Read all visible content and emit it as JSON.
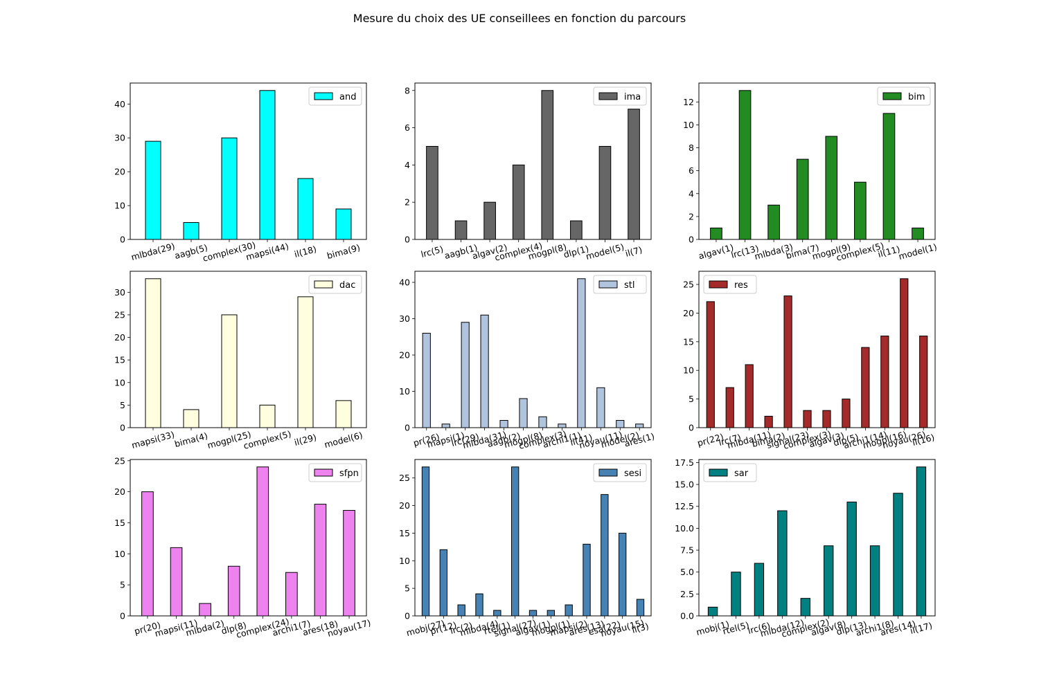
{
  "title": "Mesure du choix des UE conseillees en fonction du parcours",
  "chart_data": [
    {
      "type": "bar",
      "legend": "and",
      "color": "#00FFFF",
      "legend_loc": "upper-right",
      "categories": [
        "mlbda(29)",
        "aagb(5)",
        "complex(30)",
        "mapsi(44)",
        "il(18)",
        "bima(9)"
      ],
      "values": [
        29,
        5,
        30,
        44,
        18,
        9
      ],
      "ylim": [
        0,
        46.2
      ],
      "yticks": [
        "0",
        "10",
        "20",
        "30",
        "40"
      ]
    },
    {
      "type": "bar",
      "legend": "ima",
      "color": "#666666",
      "legend_loc": "upper-right",
      "categories": [
        "lrc(5)",
        "aagb(1)",
        "algav(2)",
        "complex(4)",
        "mogpl(8)",
        "dlp(1)",
        "model(5)",
        "il(7)"
      ],
      "values": [
        5,
        1,
        2,
        4,
        8,
        1,
        5,
        7
      ],
      "ylim": [
        0,
        8.4
      ],
      "yticks": [
        "0",
        "2",
        "4",
        "6",
        "8"
      ]
    },
    {
      "type": "bar",
      "legend": "bim",
      "color": "#228B22",
      "legend_loc": "upper-right",
      "categories": [
        "algav(1)",
        "lrc(13)",
        "mlbda(3)",
        "bima(7)",
        "mogpl(9)",
        "complex(5)",
        "il(11)",
        "model(1)"
      ],
      "values": [
        1,
        13,
        3,
        7,
        9,
        5,
        11,
        1
      ],
      "ylim": [
        0,
        13.65
      ],
      "yticks": [
        "0",
        "2",
        "4",
        "6",
        "8",
        "10",
        "12"
      ]
    },
    {
      "type": "bar",
      "legend": "dac",
      "color": "#FFFFE0",
      "legend_loc": "upper-right",
      "categories": [
        "mapsi(33)",
        "bima(4)",
        "mogpl(25)",
        "complex(5)",
        "il(29)",
        "model(6)"
      ],
      "values": [
        33,
        4,
        25,
        5,
        29,
        6
      ],
      "ylim": [
        0,
        34.65
      ],
      "yticks": [
        "0",
        "5",
        "10",
        "15",
        "20",
        "25",
        "30"
      ]
    },
    {
      "type": "bar",
      "legend": "stl",
      "color": "#B0C4DE",
      "legend_loc": "upper-right",
      "categories": [
        "pr(26)",
        "mapsi(1)",
        "lrc(29)",
        "mlbda(31)",
        "aagb(2)",
        "mogpl(8)",
        "complex(3)",
        "archi1(1)",
        "il(41)",
        "noyau(11)",
        "model(2)",
        "ares(1)"
      ],
      "values": [
        26,
        1,
        29,
        31,
        2,
        8,
        3,
        1,
        41,
        11,
        2,
        1
      ],
      "ylim": [
        0,
        43.05
      ],
      "yticks": [
        "0",
        "10",
        "20",
        "30",
        "40"
      ]
    },
    {
      "type": "bar",
      "legend": "res",
      "color": "#A52A2A",
      "legend_loc": "upper-left",
      "categories": [
        "pr(22)",
        "lrc(7)",
        "mlbda(11)",
        "bima(2)",
        "signal(23)",
        "complex(3)",
        "algav(3)",
        "dlp(5)",
        "archi1(14)",
        "mogpl(16)",
        "noyau(26)",
        "il(16)"
      ],
      "values": [
        22,
        7,
        11,
        2,
        23,
        3,
        3,
        5,
        14,
        16,
        26,
        16
      ],
      "ylim": [
        0,
        27.3
      ],
      "yticks": [
        "0",
        "5",
        "10",
        "15",
        "20",
        "25"
      ]
    },
    {
      "type": "bar",
      "legend": "sfpn",
      "color": "#EE82EE",
      "legend_loc": "upper-right",
      "categories": [
        "pr(20)",
        "mapsi(11)",
        "mlbda(2)",
        "dlp(8)",
        "complex(24)",
        "archi1(7)",
        "ares(18)",
        "noyau(17)"
      ],
      "values": [
        20,
        11,
        2,
        8,
        24,
        7,
        18,
        17
      ],
      "ylim": [
        0,
        25.2
      ],
      "yticks": [
        "0",
        "5",
        "10",
        "15",
        "20",
        "25"
      ]
    },
    {
      "type": "bar",
      "legend": "sesi",
      "color": "#4682B4",
      "legend_loc": "upper-right",
      "categories": [
        "mobj(27)",
        "pr(12)",
        "lrc(2)",
        "mlbda(4)",
        "rtel(1)",
        "signal(27)",
        "algav(1)",
        "mogpl(1)",
        "mapsi(2)",
        "ares(13)",
        "esa(22)",
        "noyau(15)",
        "il(3)"
      ],
      "values": [
        27,
        12,
        2,
        4,
        1,
        27,
        1,
        1,
        2,
        13,
        22,
        15,
        3
      ],
      "ylim": [
        0,
        28.35
      ],
      "yticks": [
        "0",
        "5",
        "10",
        "15",
        "20",
        "25"
      ]
    },
    {
      "type": "bar",
      "legend": "sar",
      "color": "#008080",
      "legend_loc": "upper-left",
      "categories": [
        "mobj(1)",
        "rtel(5)",
        "lrc(6)",
        "mlbda(12)",
        "complex(2)",
        "algav(8)",
        "dlp(13)",
        "archi1(8)",
        "ares(14)",
        "il(17)"
      ],
      "values": [
        1,
        5,
        6,
        12,
        2,
        8,
        13,
        8,
        14,
        17
      ],
      "ylim": [
        0,
        17.85
      ],
      "yticks": [
        "0.0",
        "2.5",
        "5.0",
        "7.5",
        "10.0",
        "12.5",
        "15.0",
        "17.5"
      ]
    }
  ]
}
